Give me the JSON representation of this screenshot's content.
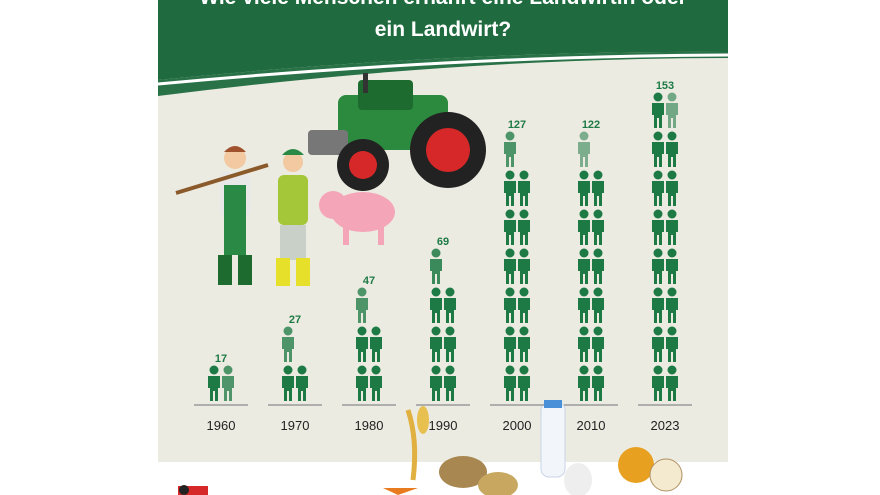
{
  "chart_data": {
    "type": "pictogram",
    "title": "Wie viele Menschen ernährt eine Landwirtin oder ein Landwirt?",
    "categories": [
      "1960",
      "1970",
      "1980",
      "1990",
      "2000",
      "2010",
      "2023"
    ],
    "values": [
      17,
      27,
      47,
      69,
      127,
      122,
      153
    ],
    "color": "#1e7a45"
  }
}
